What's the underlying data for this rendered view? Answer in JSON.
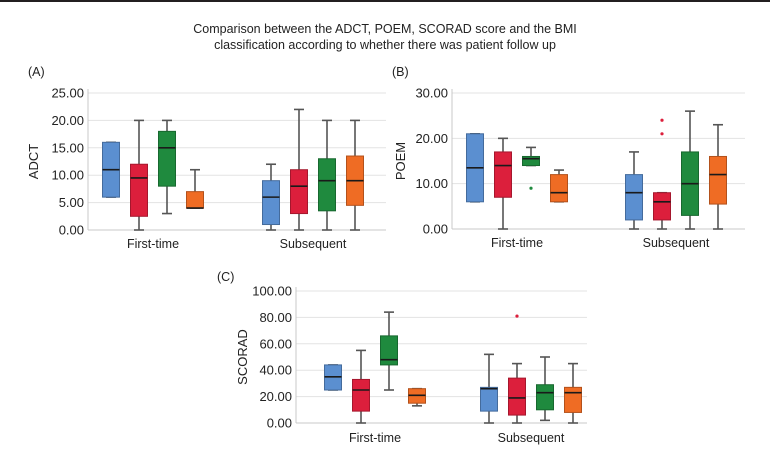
{
  "title_line1": "Comparison between the ADCT, POEM, SCORAD score and the BMI",
  "title_line2": "classification according to whether there was patient follow up",
  "chart_data": [
    {
      "type": "box",
      "panel_label": "(A)",
      "ylabel": "ADCT",
      "ylim": [
        0,
        25
      ],
      "yticks": [
        0,
        5,
        10,
        15,
        20,
        25
      ],
      "ytick_labels": [
        "0.00",
        "5.00",
        "10.00",
        "15.00",
        "20.00",
        "25.00"
      ],
      "grid": true,
      "categories": [
        "First-time",
        "Subsequent"
      ],
      "series_colors": [
        "#5b8fd0",
        "#dc1f3c",
        "#1f8a3e",
        "#ef6c24"
      ],
      "groups": [
        {
          "category": "First-time",
          "boxes": [
            {
              "min": 6,
              "q1": 6,
              "median": 11,
              "q3": 16,
              "max": 16,
              "outliers": []
            },
            {
              "min": 0,
              "q1": 2.5,
              "median": 9.5,
              "q3": 12,
              "max": 20,
              "outliers": []
            },
            {
              "min": 3,
              "q1": 8,
              "median": 15,
              "q3": 18,
              "max": 20,
              "outliers": []
            },
            {
              "min": 4,
              "q1": 4,
              "median": 4,
              "q3": 7,
              "max": 11,
              "outliers": []
            }
          ]
        },
        {
          "category": "Subsequent",
          "boxes": [
            {
              "min": 0,
              "q1": 1,
              "median": 6,
              "q3": 9,
              "max": 12,
              "outliers": []
            },
            {
              "min": 0,
              "q1": 3,
              "median": 8,
              "q3": 11,
              "max": 22,
              "outliers": []
            },
            {
              "min": 0,
              "q1": 3.5,
              "median": 9,
              "q3": 13,
              "max": 20,
              "outliers": []
            },
            {
              "min": 0,
              "q1": 4.5,
              "median": 9,
              "q3": 13.5,
              "max": 20,
              "outliers": []
            }
          ]
        }
      ]
    },
    {
      "type": "box",
      "panel_label": "(B)",
      "ylabel": "POEM",
      "ylim": [
        0,
        30
      ],
      "yticks": [
        0,
        10,
        20,
        30
      ],
      "ytick_labels": [
        "0.00",
        "10.00",
        "20.00",
        "30.00"
      ],
      "grid": true,
      "categories": [
        "First-time",
        "Subsequent"
      ],
      "series_colors": [
        "#5b8fd0",
        "#dc1f3c",
        "#1f8a3e",
        "#ef6c24"
      ],
      "groups": [
        {
          "category": "First-time",
          "boxes": [
            {
              "min": 6,
              "q1": 6,
              "median": 13.5,
              "q3": 21,
              "max": 21,
              "outliers": []
            },
            {
              "min": 0,
              "q1": 7,
              "median": 14,
              "q3": 17,
              "max": 20,
              "outliers": []
            },
            {
              "min": 14,
              "q1": 14,
              "median": 15.5,
              "q3": 16,
              "max": 18,
              "outliers": [
                9
              ]
            },
            {
              "min": 6,
              "q1": 6,
              "median": 8,
              "q3": 12,
              "max": 13,
              "outliers": []
            }
          ]
        },
        {
          "category": "Subsequent",
          "boxes": [
            {
              "min": 0,
              "q1": 2,
              "median": 8,
              "q3": 12,
              "max": 17,
              "outliers": []
            },
            {
              "min": 0,
              "q1": 2,
              "median": 6,
              "q3": 8,
              "max": 8,
              "outliers": [
                21,
                24
              ]
            },
            {
              "min": 0,
              "q1": 3,
              "median": 10,
              "q3": 17,
              "max": 26,
              "outliers": []
            },
            {
              "min": 0,
              "q1": 5.5,
              "median": 12,
              "q3": 16,
              "max": 23,
              "outliers": []
            }
          ]
        }
      ]
    },
    {
      "type": "box",
      "panel_label": "(C)",
      "ylabel": "SCORAD",
      "ylim": [
        0,
        100
      ],
      "yticks": [
        0,
        20,
        40,
        60,
        80,
        100
      ],
      "ytick_labels": [
        "0.00",
        "20.00",
        "40.00",
        "60.00",
        "80.00",
        "100.00"
      ],
      "grid": true,
      "categories": [
        "First-time",
        "Subsequent"
      ],
      "series_colors": [
        "#5b8fd0",
        "#dc1f3c",
        "#1f8a3e",
        "#ef6c24"
      ],
      "groups": [
        {
          "category": "First-time",
          "boxes": [
            {
              "min": 25,
              "q1": 25,
              "median": 35,
              "q3": 44,
              "max": 44,
              "outliers": []
            },
            {
              "min": 0,
              "q1": 9,
              "median": 25,
              "q3": 33,
              "max": 55,
              "outliers": []
            },
            {
              "min": 25,
              "q1": 44,
              "median": 48,
              "q3": 66,
              "max": 84,
              "outliers": []
            },
            {
              "min": 13,
              "q1": 15,
              "median": 21,
              "q3": 26,
              "max": 26,
              "outliers": []
            }
          ]
        },
        {
          "category": "Subsequent",
          "boxes": [
            {
              "min": 0,
              "q1": 9,
              "median": 26,
              "q3": 27,
              "max": 52,
              "outliers": []
            },
            {
              "min": 0,
              "q1": 6,
              "median": 19,
              "q3": 34,
              "max": 45,
              "outliers": [
                81
              ]
            },
            {
              "min": 2,
              "q1": 10,
              "median": 23,
              "q3": 29,
              "max": 50,
              "outliers": []
            },
            {
              "min": 0,
              "q1": 8,
              "median": 23,
              "q3": 27,
              "max": 45,
              "outliers": []
            }
          ]
        }
      ]
    }
  ]
}
